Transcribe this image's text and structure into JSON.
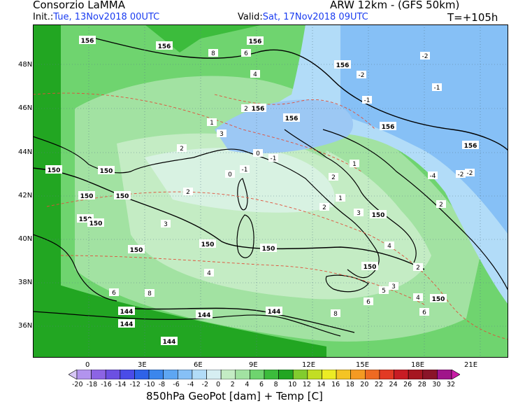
{
  "header": {
    "org": "Consorzio LaMMA",
    "model": "ARW 12km - (GFS 50km)",
    "init_label": "Init.:",
    "init_value": "Tue, 13Nov2018 00UTC",
    "valid_label": "Valid:",
    "valid_value": "Sat, 17Nov2018 09UTC",
    "lead": "T=+105h"
  },
  "axes": {
    "lat": [
      "48N",
      "46N",
      "44N",
      "42N",
      "40N",
      "38N",
      "36N"
    ],
    "lon": [
      "0",
      "3E",
      "6E",
      "9E",
      "12E",
      "15E",
      "18E",
      "21E"
    ]
  },
  "colorbar": {
    "labels": [
      "-20",
      "-18",
      "-16",
      "-14",
      "-12",
      "-10",
      "-8",
      "-6",
      "-4",
      "-2",
      "0",
      "2",
      "4",
      "6",
      "8",
      "10",
      "12",
      "14",
      "16",
      "18",
      "20",
      "22",
      "24",
      "26",
      "28",
      "30",
      "32"
    ],
    "colors": [
      "#d8c8f6",
      "#b294ee",
      "#8c64e4",
      "#6c50e2",
      "#4a4ce8",
      "#2e62e8",
      "#3b86ec",
      "#5ea6f2",
      "#86c0f6",
      "#b2dcf8",
      "#d6eef2",
      "#c4ecc4",
      "#a2e2a2",
      "#6fd46f",
      "#3cbc3c",
      "#22a622",
      "#82cc2e",
      "#c2de24",
      "#ecec24",
      "#f4c424",
      "#f49a22",
      "#ee6a22",
      "#e23a24",
      "#c81c24",
      "#a61620",
      "#8a1428",
      "#a0148a",
      "#c81ca6"
    ]
  },
  "footer": "850hPa GeoPot [dam] + Temp [C]",
  "contours": {
    "geopot": [
      "156",
      "156",
      "156",
      "156",
      "156",
      "156",
      "156",
      "156",
      "150",
      "150",
      "150",
      "150",
      "150",
      "150",
      "150",
      "150",
      "150",
      "150",
      "150",
      "150",
      "144",
      "144",
      "144",
      "144",
      "144"
    ],
    "temp": [
      "8",
      "6",
      "4",
      "2",
      "3",
      "2",
      "0",
      "-1",
      "1",
      "0",
      "2",
      "-1",
      "-2",
      "-1",
      "-2",
      "-1",
      "-4",
      "-2",
      "1",
      "2",
      "1",
      "3",
      "4",
      "2",
      "3",
      "4",
      "6",
      "8",
      "8",
      "6",
      "5",
      "4",
      "3",
      "2",
      "6",
      "-2",
      "2"
    ]
  }
}
